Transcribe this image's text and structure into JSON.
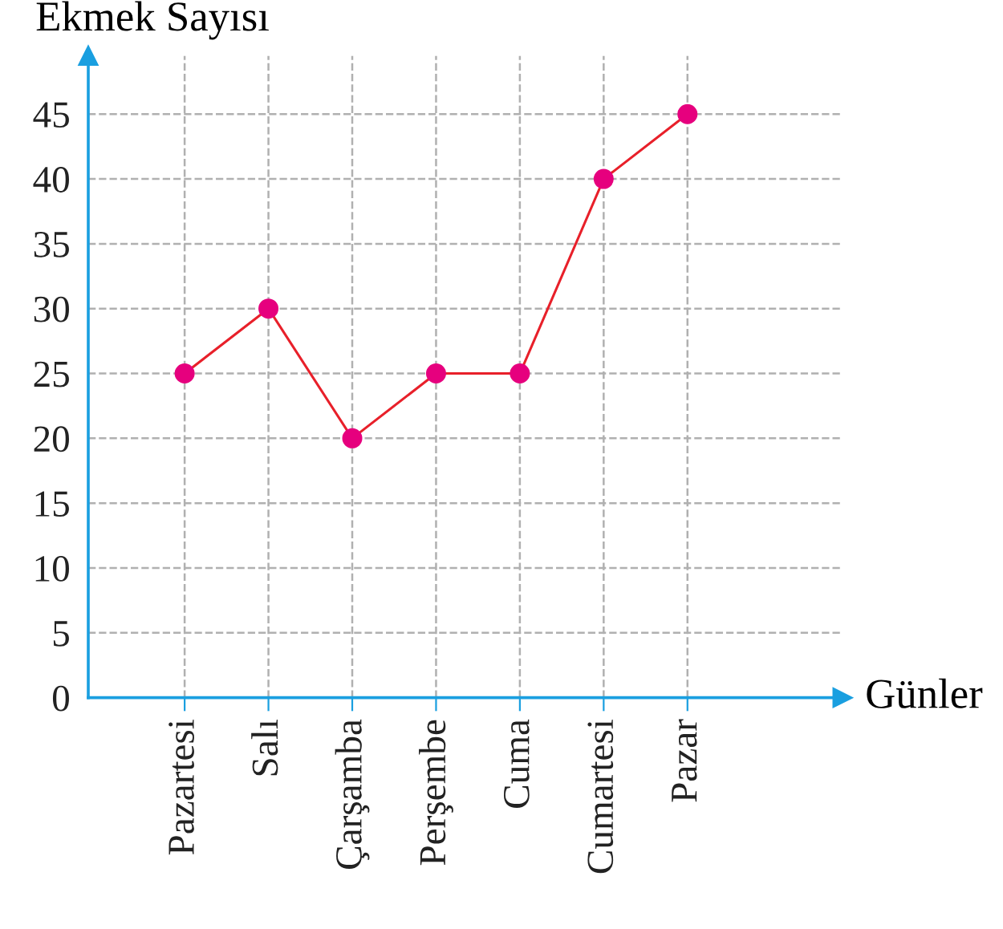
{
  "chart_data": {
    "type": "line",
    "xlabel": "Günler",
    "ylabel": "Ekmek Sayısı",
    "categories": [
      "Pazartesi",
      "Salı",
      "Çarşamba",
      "Perşembe",
      "Cuma",
      "Cumartesi",
      "Pazar"
    ],
    "series": [
      {
        "values": [
          25,
          30,
          20,
          25,
          25,
          40,
          45
        ],
        "color": "#e8202a",
        "colors": [
          "#e6007e",
          "#e6007e",
          "#e6007e",
          "#e6007e",
          "#e6007e",
          "#e6007e",
          "#e6007e"
        ]
      }
    ],
    "ylim": [
      0,
      49.5
    ],
    "yticks": [
      0,
      5,
      10,
      15,
      20,
      25,
      30,
      35,
      40,
      45
    ],
    "grid": true,
    "marker": "circle",
    "line_style": "solid",
    "legend": false
  }
}
